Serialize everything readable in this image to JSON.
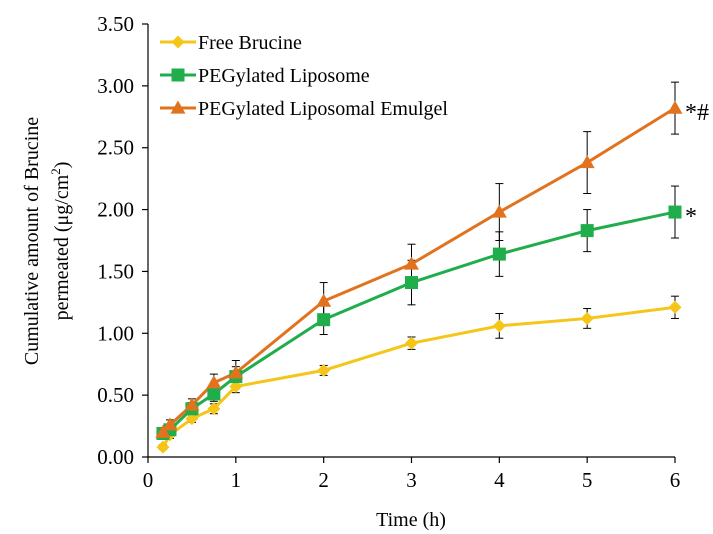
{
  "chart_data": {
    "type": "line",
    "xlabel": "Time (h)",
    "ylabel_line1": "Cumulative amount of Brucine",
    "ylabel_line2_prefix": "permeated (μg/cm",
    "ylabel_line2_sup": "2",
    "ylabel_line2_suffix": ")",
    "xlim": [
      0,
      6
    ],
    "ylim": [
      0,
      3.5
    ],
    "xticks": [
      "0",
      "1",
      "2",
      "3",
      "4",
      "5",
      "6"
    ],
    "yticks": [
      "0.00",
      "0.50",
      "1.00",
      "1.50",
      "2.00",
      "2.50",
      "3.00",
      "3.50"
    ],
    "grid": false,
    "legend_position": "top-left",
    "x": [
      0.17,
      0.25,
      0.5,
      0.75,
      1,
      2,
      3,
      4,
      5,
      6
    ],
    "series": [
      {
        "name": "Free Brucine",
        "color": "#F5C518",
        "marker": "diamond",
        "values": [
          0.08,
          0.18,
          0.31,
          0.39,
          0.57,
          0.7,
          0.92,
          1.06,
          1.12,
          1.21
        ],
        "errors": [
          0.02,
          0.03,
          0.03,
          0.04,
          0.05,
          0.04,
          0.05,
          0.1,
          0.08,
          0.09
        ]
      },
      {
        "name": "PEGylated Liposome",
        "color": "#1FAE4B",
        "marker": "square",
        "values": [
          0.19,
          0.22,
          0.39,
          0.51,
          0.65,
          1.11,
          1.41,
          1.64,
          1.83,
          1.98
        ],
        "errors": [
          0.03,
          0.04,
          0.05,
          0.06,
          0.08,
          0.12,
          0.18,
          0.18,
          0.17,
          0.21
        ]
      },
      {
        "name": "PEGylated Liposomal Emulgel",
        "color": "#E2731E",
        "marker": "triangle",
        "values": [
          0.2,
          0.26,
          0.42,
          0.6,
          0.68,
          1.26,
          1.56,
          1.98,
          2.38,
          2.82
        ],
        "errors": [
          0.03,
          0.04,
          0.05,
          0.07,
          0.1,
          0.15,
          0.16,
          0.23,
          0.25,
          0.21
        ]
      }
    ],
    "annotations": [
      {
        "series": "PEGylated Liposomal Emulgel",
        "x": 6,
        "text": "*#"
      },
      {
        "series": "PEGylated Liposome",
        "x": 6,
        "text": "*"
      }
    ]
  }
}
